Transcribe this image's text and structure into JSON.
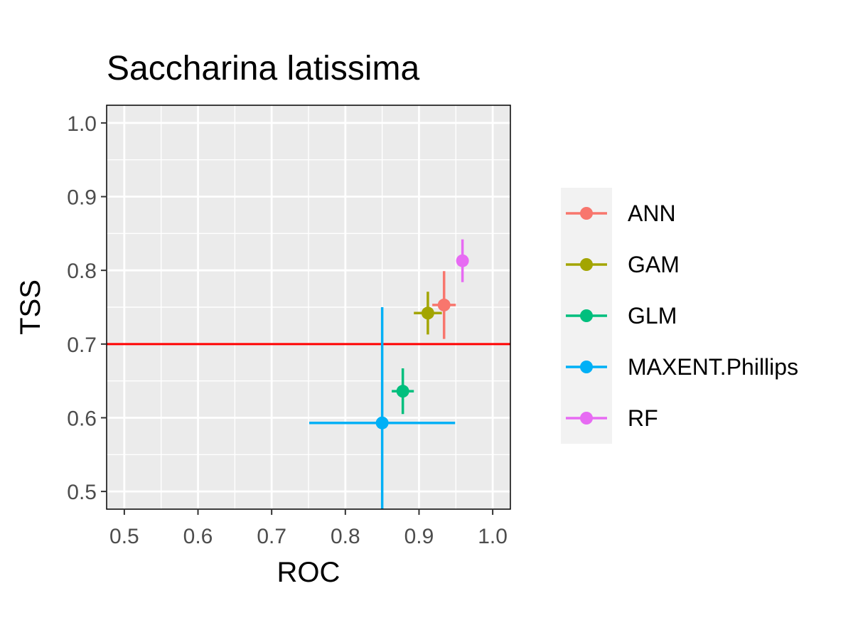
{
  "chart_data": {
    "type": "scatter",
    "title": "Saccharina latissima",
    "xlabel": "ROC",
    "ylabel": "TSS",
    "xlim": [
      0.476,
      1.024
    ],
    "ylim": [
      0.476,
      1.024
    ],
    "x_ticks": [
      0.5,
      0.6,
      0.7,
      0.8,
      0.9,
      1.0
    ],
    "x_tick_labels": [
      "0.5",
      "0.6",
      "0.7",
      "0.8",
      "0.9",
      "1.0"
    ],
    "y_ticks": [
      0.5,
      0.6,
      0.7,
      0.8,
      0.9,
      1.0
    ],
    "y_tick_labels": [
      "0.5",
      "0.6",
      "0.7",
      "0.8",
      "0.9",
      "1.0"
    ],
    "grid": true,
    "legend_position": "right",
    "reference_line": {
      "axis": "y",
      "value": 0.7,
      "color": "#ff0000"
    },
    "series": [
      {
        "name": "ANN",
        "color": "#F8766D",
        "x": 0.934,
        "y": 0.753,
        "xerr": [
          0.918,
          0.95
        ],
        "yerr": [
          0.707,
          0.799
        ]
      },
      {
        "name": "GAM",
        "color": "#A3A500",
        "x": 0.912,
        "y": 0.742,
        "xerr": [
          0.893,
          0.931
        ],
        "yerr": [
          0.713,
          0.771
        ]
      },
      {
        "name": "GLM",
        "color": "#00BF7D",
        "x": 0.878,
        "y": 0.636,
        "xerr": [
          0.863,
          0.893
        ],
        "yerr": [
          0.605,
          0.667
        ]
      },
      {
        "name": "MAXENT.Phillips",
        "color": "#00B0F6",
        "x": 0.85,
        "y": 0.593,
        "xerr": [
          0.751,
          0.949
        ],
        "yerr": [
          0.434,
          0.75
        ]
      },
      {
        "name": "RF",
        "color": "#E76BF3",
        "x": 0.959,
        "y": 0.813,
        "xerr": [
          0.954,
          0.964
        ],
        "yerr": [
          0.784,
          0.842
        ]
      }
    ]
  }
}
